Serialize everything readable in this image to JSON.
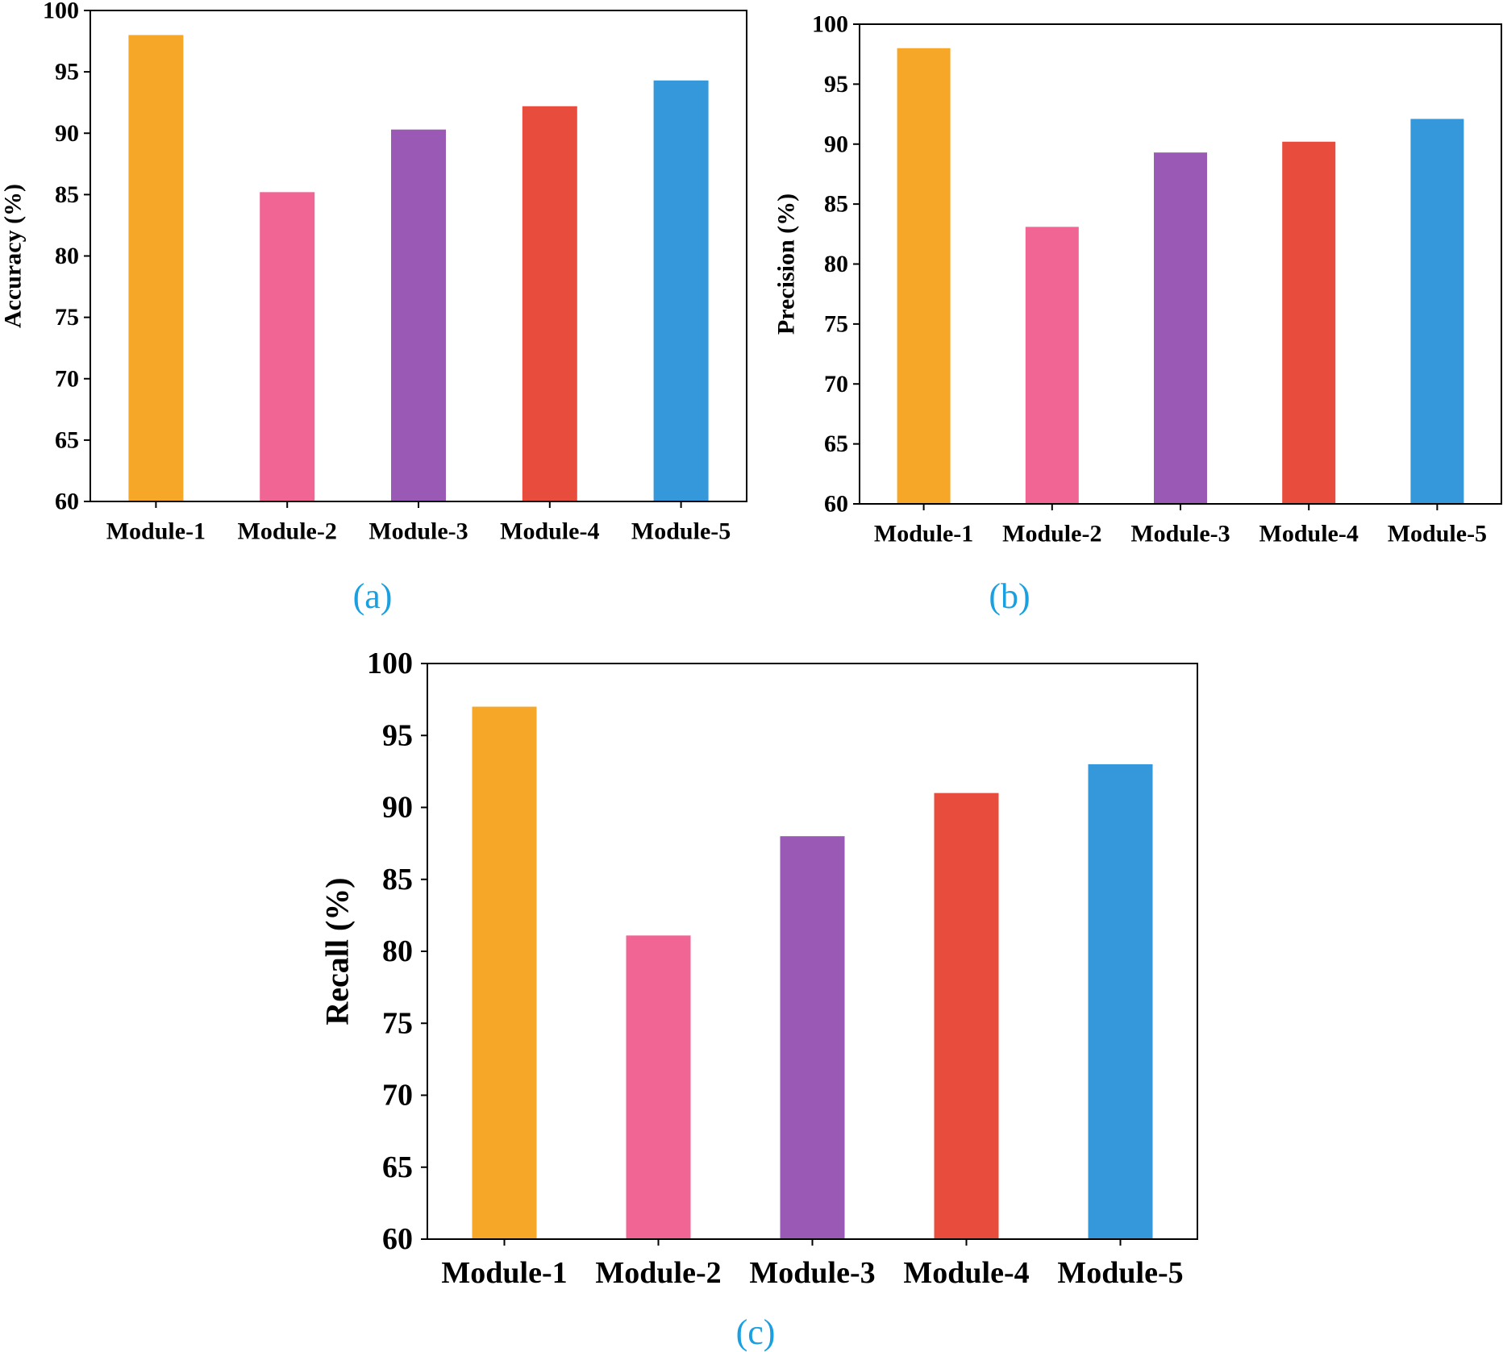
{
  "chart_data": [
    {
      "panel": "a",
      "type": "bar",
      "caption": "(a)",
      "categories": [
        "Module-1",
        "Module-2",
        "Module-3",
        "Module-4",
        "Module-5"
      ],
      "values": [
        98,
        85.2,
        90.3,
        92.2,
        94.3
      ],
      "colors": [
        "#f6a728",
        "#f06593",
        "#9b59b6",
        "#e84c3d",
        "#3498db"
      ],
      "ylabel": "Accuracy (%)",
      "ylim": [
        60,
        100
      ],
      "yticks": [
        60,
        65,
        70,
        75,
        80,
        85,
        90,
        95,
        100
      ],
      "grid": false
    },
    {
      "panel": "b",
      "type": "bar",
      "caption": "(b)",
      "categories": [
        "Module-1",
        "Module-2",
        "Module-3",
        "Module-4",
        "Module-5"
      ],
      "values": [
        98,
        83.1,
        89.3,
        90.2,
        92.1
      ],
      "colors": [
        "#f6a728",
        "#f06593",
        "#9b59b6",
        "#e84c3d",
        "#3498db"
      ],
      "ylabel": "Precision (%)",
      "ylim": [
        60,
        100
      ],
      "yticks": [
        60,
        65,
        70,
        75,
        80,
        85,
        90,
        95,
        100
      ],
      "grid": false
    },
    {
      "panel": "c",
      "type": "bar",
      "caption": "(c)",
      "categories": [
        "Module-1",
        "Module-2",
        "Module-3",
        "Module-4",
        "Module-5"
      ],
      "values": [
        97,
        81.1,
        88,
        91,
        93
      ],
      "colors": [
        "#f6a728",
        "#f06593",
        "#9b59b6",
        "#e84c3d",
        "#3498db"
      ],
      "ylabel": "Recall (%)",
      "ylim": [
        60,
        100
      ],
      "yticks": [
        60,
        65,
        70,
        75,
        80,
        85,
        90,
        95,
        100
      ],
      "grid": false
    }
  ]
}
